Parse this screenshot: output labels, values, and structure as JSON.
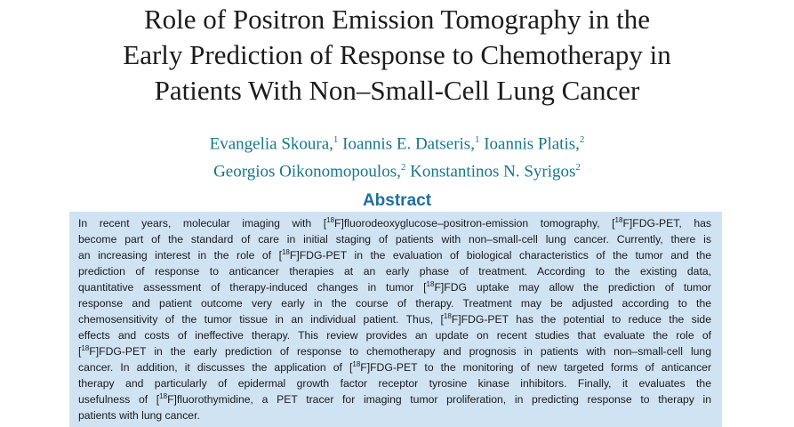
{
  "title": [
    "Role of Positron Emission Tomography in the",
    "Early Prediction of Response to Chemotherapy in",
    "Patients With Non–Small-Cell Lung Cancer"
  ],
  "authors": [
    [
      {
        "name": "Evangelia Skoura,",
        "sup": "1"
      },
      {
        "name": "Ioannis E. Datseris,",
        "sup": "1"
      },
      {
        "name": "Ioannis Platis,",
        "sup": "2"
      }
    ],
    [
      {
        "name": "Georgios Oikonomopoulos,",
        "sup": "2"
      },
      {
        "name": "Konstantinos N. Syrigos",
        "sup": "2"
      }
    ]
  ],
  "abstract": {
    "heading": "Abstract",
    "lines": [
      [
        "In recent years, molecular imaging with [",
        {
          "sup": "18"
        },
        "F]fluorodeoxyglucose–positron-emission tomography, [",
        {
          "sup": "18"
        },
        "F]FDG-PET, has"
      ],
      [
        "become part of the standard of care in initial staging of patients with non–small-cell lung cancer. Currently, there is"
      ],
      [
        "an increasing interest in the role of [",
        {
          "sup": "18"
        },
        "F]FDG-PET in the evaluation of biological characteristics of the tumor and the"
      ],
      [
        "prediction of response to anticancer therapies at an early phase of treatment. According to the existing data,"
      ],
      [
        "quantitative assessment of therapy-induced changes in tumor [",
        {
          "sup": "18"
        },
        "F]FDG uptake may allow the prediction of tumor"
      ],
      [
        "response and patient outcome very early in the course of therapy. Treatment may be adjusted according to the"
      ],
      [
        "chemosensitivity of the tumor tissue in an individual patient. Thus, [",
        {
          "sup": "18"
        },
        "F]FDG-PET has the potential to reduce the side"
      ],
      [
        "effects and costs of ineffective therapy. This review provides an update on recent studies that evaluate the role of"
      ],
      [
        "[",
        {
          "sup": "18"
        },
        "F]FDG-PET in the early prediction of response to chemotherapy and prognosis in patients with non–small-cell lung"
      ],
      [
        "cancer. In addition, it discusses the application of [",
        {
          "sup": "18"
        },
        "F]FDG-PET to the monitoring of new targeted forms of anticancer"
      ],
      [
        "therapy and particularly of epidermal growth factor receptor tyrosine kinase inhibitors. Finally, it evaluates the"
      ],
      [
        "usefulness of [",
        {
          "sup": "18"
        },
        "F]fluorothymidine, a PET tracer for imaging tumor proliferation, in predicting response to therapy in"
      ],
      [
        "patients with lung cancer."
      ]
    ]
  }
}
